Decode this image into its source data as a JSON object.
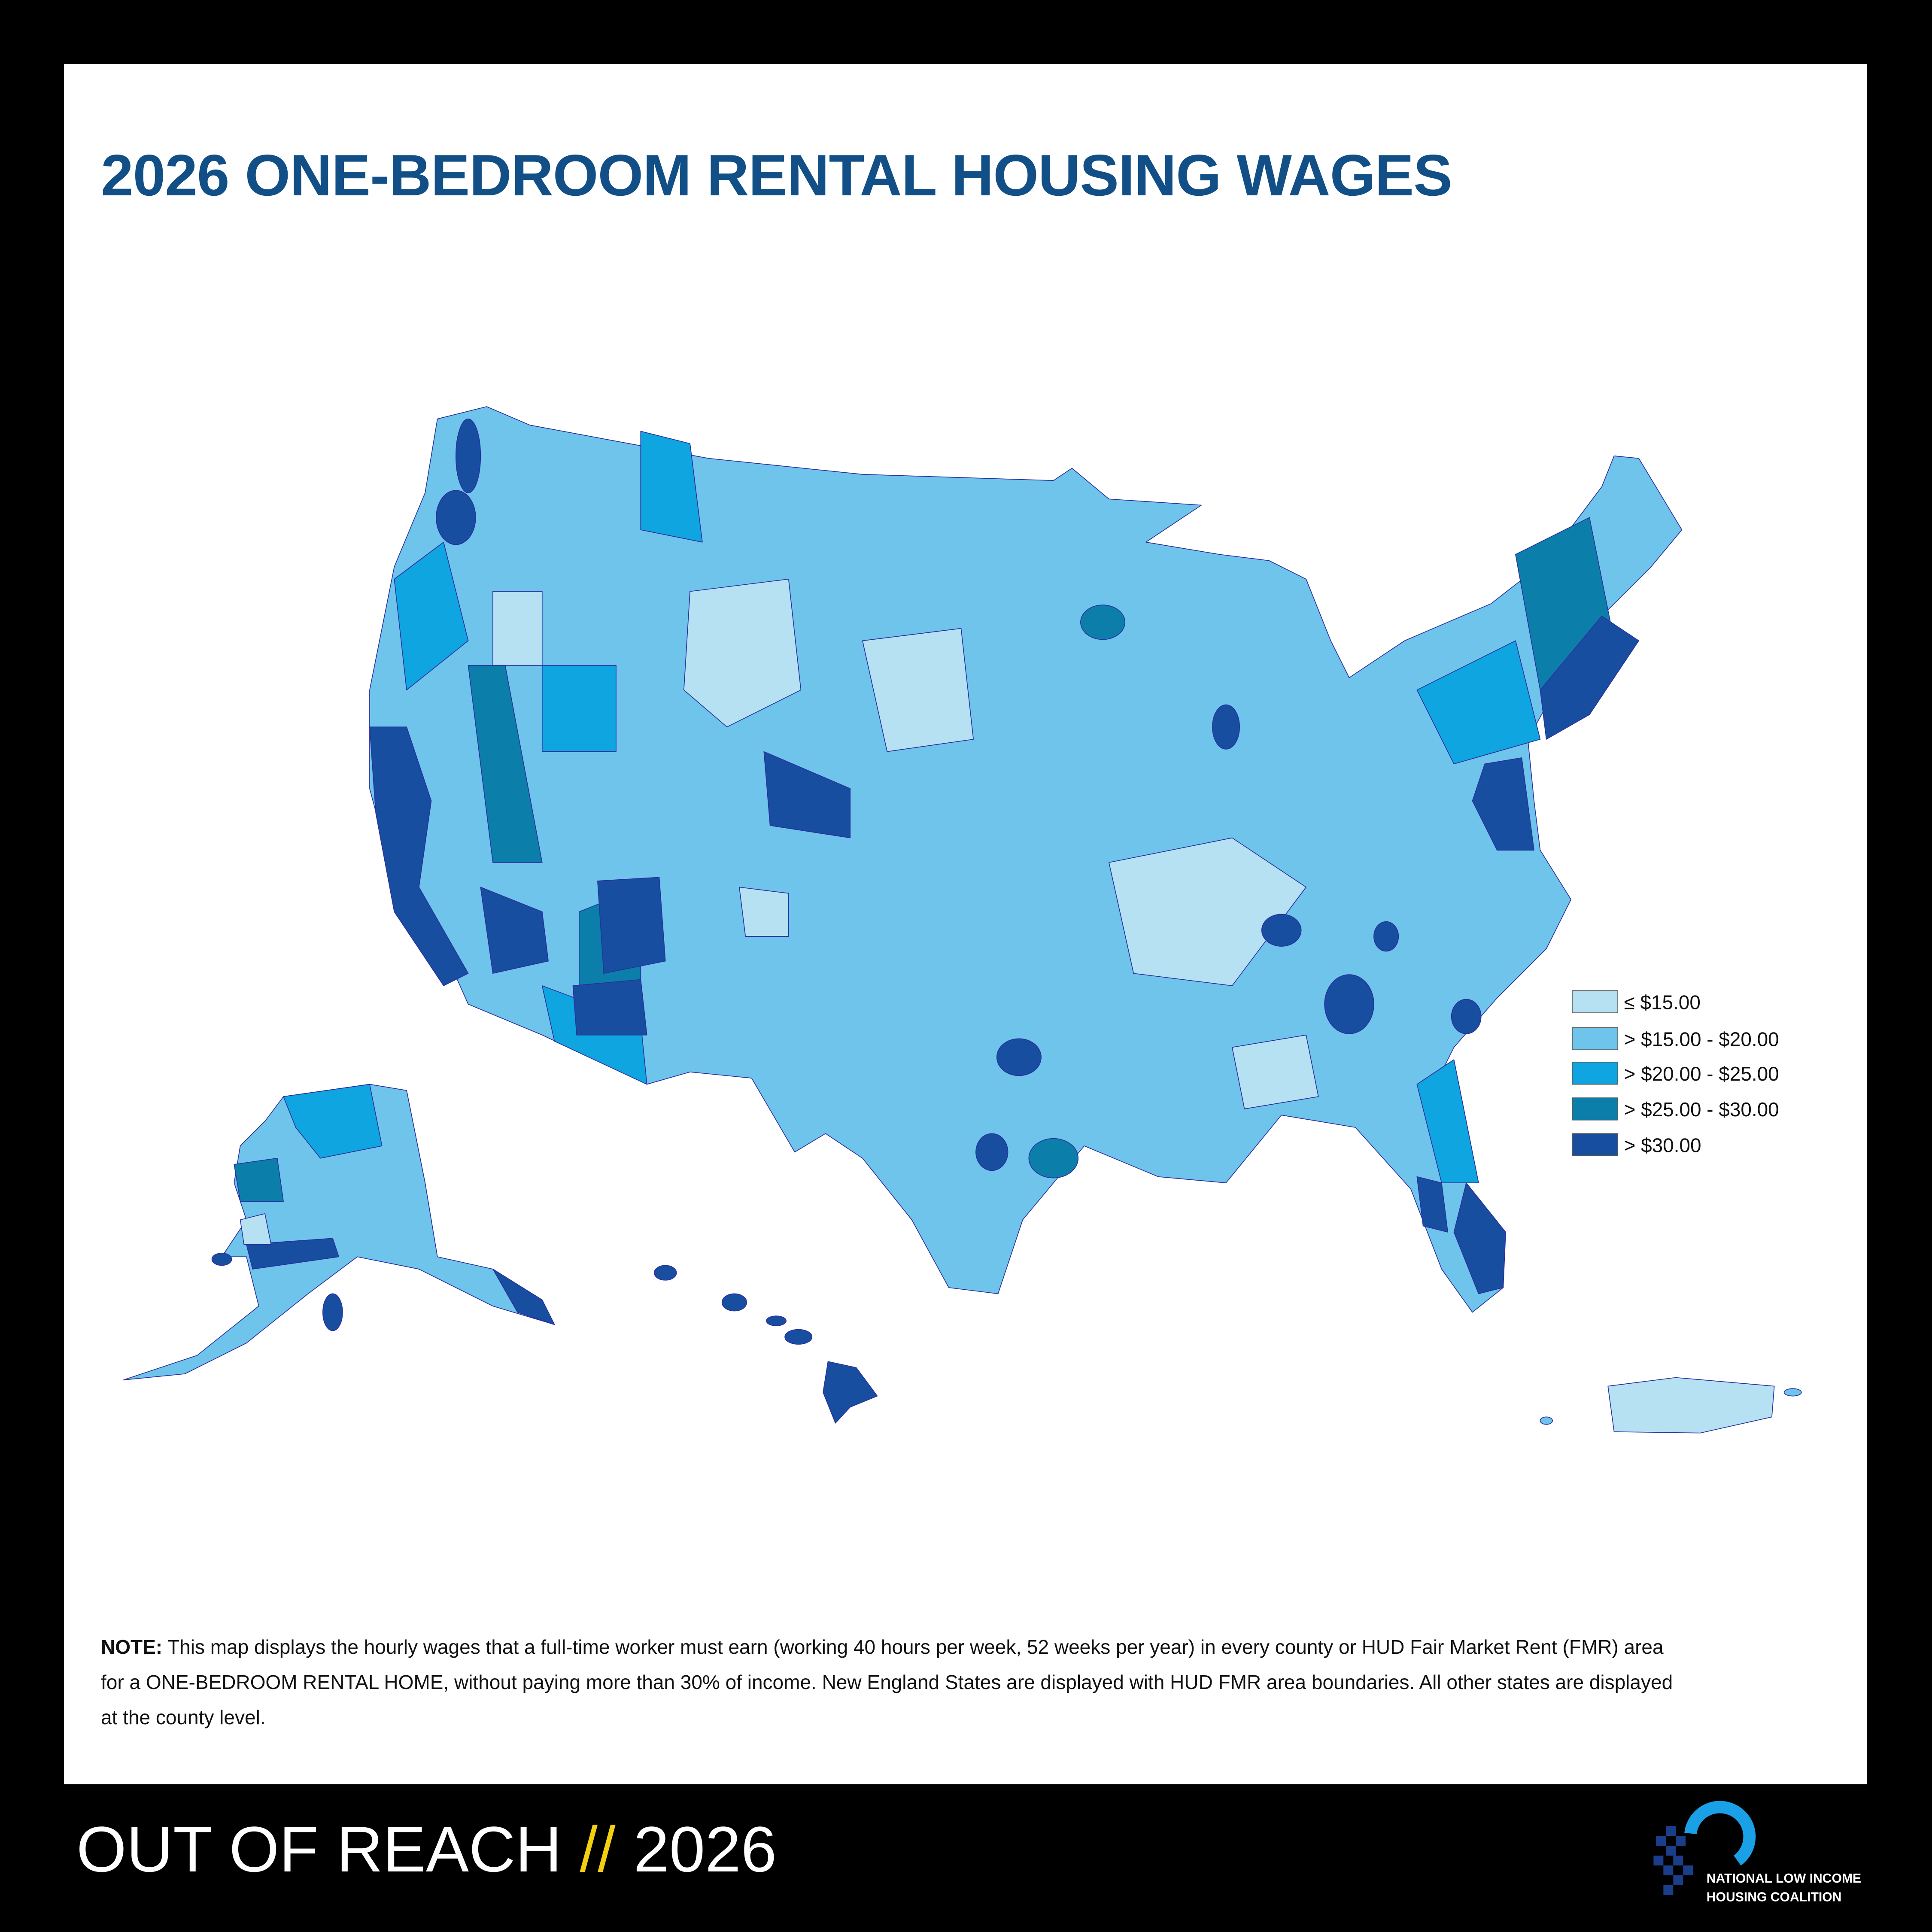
{
  "title": "2026 ONE-BEDROOM RENTAL HOUSING WAGES",
  "legend": [
    {
      "label": "≤ $15.00",
      "color": "#b5e1f3"
    },
    {
      "label": "> $15.00 - $20.00",
      "color": "#6fc4ec"
    },
    {
      "label": "> $20.00 - $25.00",
      "color": "#0ea5e0"
    },
    {
      "label": "> $25.00 - $30.00",
      "color": "#0b7faa"
    },
    {
      "label": "> $30.00",
      "color": "#174ea0"
    }
  ],
  "note": {
    "label": "NOTE:",
    "text": "This map displays the hourly wages that a full-time worker must earn (working 40 hours per week, 52 weeks per year) in every county or HUD Fair Market Rent (FMR) area for a ONE-BEDROOM RENTAL HOME, without paying more than 30% of income. New England States are displayed with HUD FMR area boundaries. All other states are displayed at the county level."
  },
  "footer": {
    "title": "OUT OF REACH",
    "separator": "//",
    "year": "2026"
  },
  "logo": {
    "line1": "NATIONAL LOW INCOME",
    "line2": "HOUSING COALITION"
  }
}
